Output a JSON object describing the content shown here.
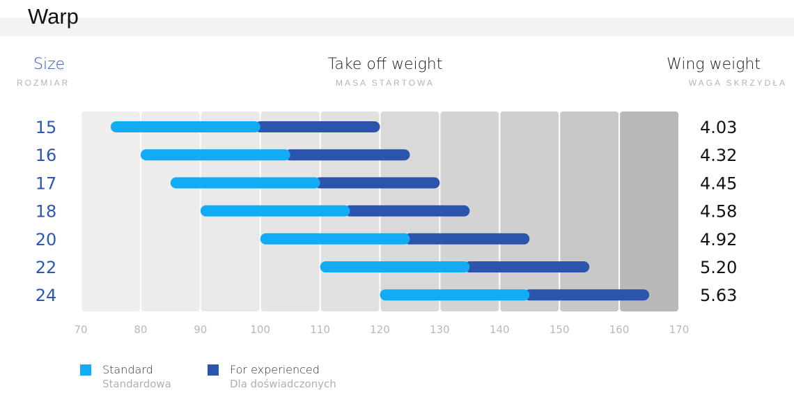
{
  "title": "Warp",
  "headers": {
    "size": {
      "label": "Size",
      "sub": "ROZMIAR"
    },
    "take_off": {
      "label": "Take off weight",
      "sub": "MASA STARTOWA"
    },
    "wing_weight": {
      "label": "Wing weight",
      "sub": "WAGA SKRZYDŁA"
    }
  },
  "legend": [
    {
      "label": "Standard",
      "sub": "Standardowa",
      "color": "#12acf5"
    },
    {
      "label": "For experienced",
      "sub": "Dla doświadczonych",
      "color": "#2b54ad"
    }
  ],
  "colors": {
    "size_text": "#2c57b5",
    "standard": "#12acf5",
    "experienced": "#2b54ad",
    "band_shades": [
      "#efefef",
      "#ececec",
      "#e9e9e9",
      "#e5e5e5",
      "#e1e1e1",
      "#d9d9d9",
      "#d4d4d4",
      "#cfcfcf",
      "#c8c8c8",
      "#b9b9b9"
    ]
  },
  "chart_data": {
    "type": "bar",
    "orientation": "horizontal",
    "stacked_ranges": true,
    "categories": [
      "15",
      "16",
      "17",
      "18",
      "20",
      "22",
      "24"
    ],
    "series": [
      {
        "name": "Standard",
        "ranges": [
          [
            75,
            100
          ],
          [
            80,
            105
          ],
          [
            85,
            110
          ],
          [
            90,
            115
          ],
          [
            100,
            125
          ],
          [
            110,
            135
          ],
          [
            120,
            145
          ]
        ]
      },
      {
        "name": "For experienced",
        "ranges": [
          [
            100,
            120
          ],
          [
            105,
            125
          ],
          [
            110,
            130
          ],
          [
            115,
            135
          ],
          [
            125,
            145
          ],
          [
            135,
            155
          ],
          [
            145,
            165
          ]
        ]
      }
    ],
    "wing_weights": [
      "4.03",
      "4.32",
      "4.45",
      "4.58",
      "4.92",
      "5.20",
      "5.63"
    ],
    "xlim": [
      70,
      170
    ],
    "xticks": [
      70,
      80,
      90,
      100,
      110,
      120,
      130,
      140,
      150,
      160,
      170
    ],
    "xlabel": "",
    "ylabel": "",
    "legend_position": "bottom-left"
  }
}
